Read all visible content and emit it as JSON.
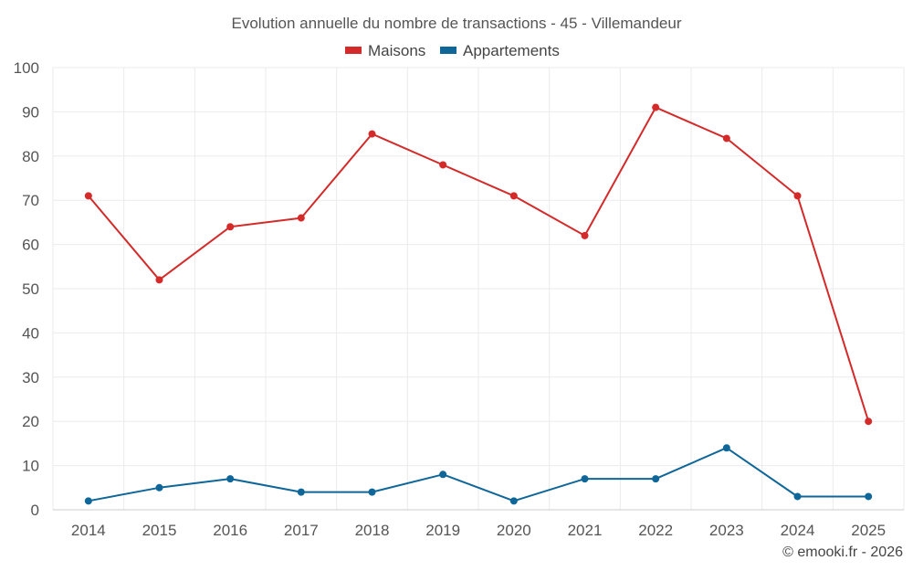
{
  "chart_data": {
    "type": "line",
    "title": "Evolution annuelle du nombre de transactions - 45 - Villemandeur",
    "categories": [
      "2014",
      "2015",
      "2016",
      "2017",
      "2018",
      "2019",
      "2020",
      "2021",
      "2022",
      "2023",
      "2024",
      "2025"
    ],
    "series": [
      {
        "name": "Maisons",
        "color": "#d42a2a",
        "values": [
          71,
          52,
          64,
          66,
          85,
          78,
          71,
          62,
          91,
          84,
          71,
          20
        ]
      },
      {
        "name": "Appartements",
        "color": "#0e6699",
        "values": [
          2,
          5,
          7,
          4,
          4,
          8,
          2,
          7,
          7,
          14,
          3,
          3
        ]
      }
    ],
    "ylim": [
      0,
      100
    ],
    "yticks": [
      0,
      10,
      20,
      30,
      40,
      50,
      60,
      70,
      80,
      90,
      100
    ],
    "xlabel": "",
    "ylabel": "",
    "grid": true,
    "legend_position": "top-center"
  },
  "credit": "© emooki.fr - 2026"
}
